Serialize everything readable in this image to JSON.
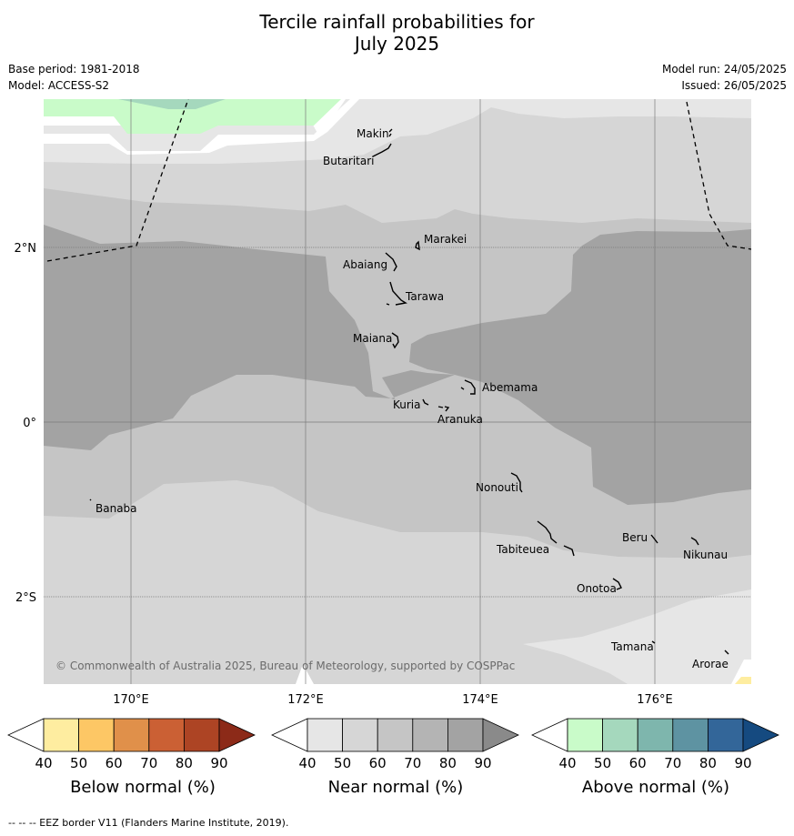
{
  "title_line1": "Tercile rainfall probabilities for",
  "title_line2": "July 2025",
  "base_period": "Base period: 1981-2018",
  "model": "Model: ACCESS-S2",
  "model_run": "Model run: 24/05/2025",
  "issued": "Issued: 26/05/2025",
  "copyright": "© Commonwealth of Australia 2025, Bureau of Meteorology, supported by COSPPac",
  "footer": "--  --  -- EEZ border V11 (Flanders Marine Institute, 2019).",
  "axes": {
    "lat_labels": [
      "2°N",
      "0°",
      "2°S"
    ],
    "lon_labels": [
      "170°E",
      "172°E",
      "174°E",
      "176°E"
    ]
  },
  "places": [
    {
      "name": "Makin"
    },
    {
      "name": "Butaritari"
    },
    {
      "name": "Marakei"
    },
    {
      "name": "Abaiang"
    },
    {
      "name": "Tarawa"
    },
    {
      "name": "Maiana"
    },
    {
      "name": "Abemama"
    },
    {
      "name": "Kuria"
    },
    {
      "name": "Aranuka"
    },
    {
      "name": "Nonouti"
    },
    {
      "name": "Banaba"
    },
    {
      "name": "Beru"
    },
    {
      "name": "Nikunau"
    },
    {
      "name": "Tabiteuea"
    },
    {
      "name": "Onotoa"
    },
    {
      "name": "Tamana"
    },
    {
      "name": "Arorae"
    }
  ],
  "colorbars": [
    {
      "label": "Below normal (%)",
      "ticks": [
        "40",
        "50",
        "60",
        "70",
        "80",
        "90"
      ],
      "colors": [
        "#ffffff",
        "#feeda0",
        "#fdc765",
        "#e0904a",
        "#cb6034",
        "#ad4424",
        "#8c2a18"
      ]
    },
    {
      "label": "Near normal (%)",
      "ticks": [
        "40",
        "50",
        "60",
        "70",
        "80",
        "90"
      ],
      "colors": [
        "#ffffff",
        "#e6e6e6",
        "#d6d6d6",
        "#c5c5c5",
        "#b4b4b4",
        "#a3a3a3",
        "#8a8a8a"
      ]
    },
    {
      "label": "Above normal (%)",
      "ticks": [
        "40",
        "50",
        "60",
        "70",
        "80",
        "90"
      ],
      "colors": [
        "#ffffff",
        "#c9fbc9",
        "#a5d8bd",
        "#7eb6ad",
        "#5e93a2",
        "#336699",
        "#154a80"
      ]
    }
  ]
}
